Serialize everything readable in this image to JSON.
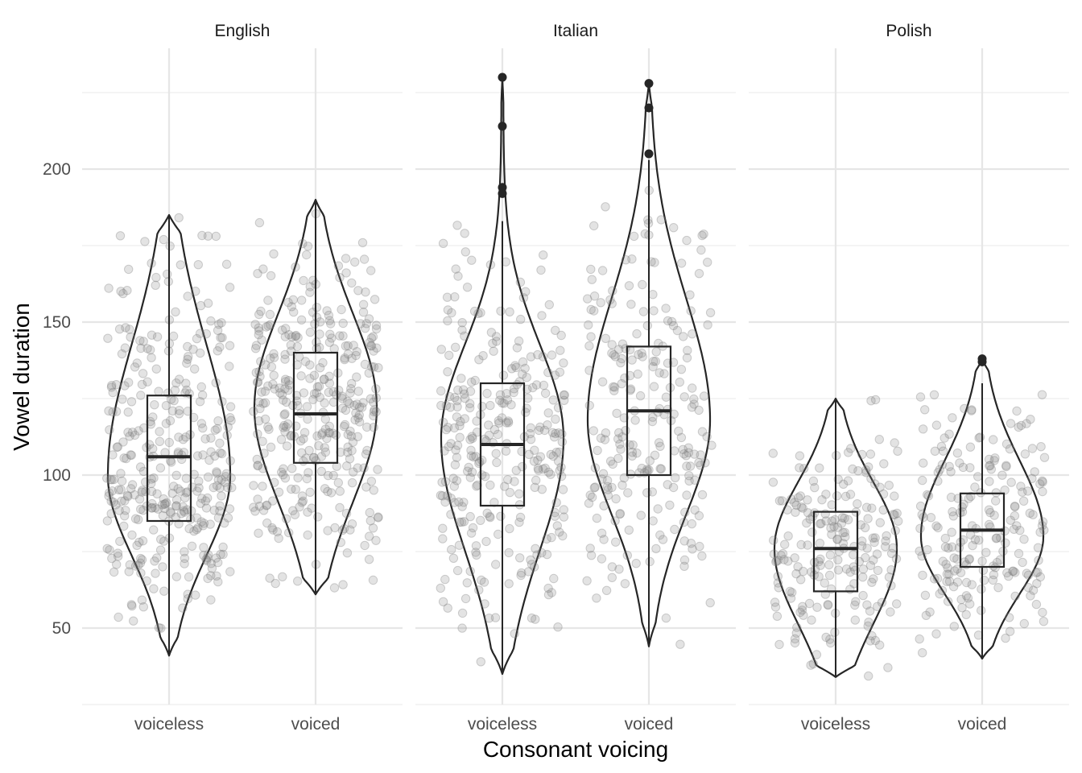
{
  "chart_data": {
    "type": "violin",
    "xlabel": "Consonant voicing",
    "ylabel": "Vowel duration",
    "ylim": [
      25,
      240
    ],
    "yticks": [
      50,
      100,
      150,
      200
    ],
    "categories": [
      "voiceless",
      "voiced"
    ],
    "grid": true,
    "colors": {
      "outline": "#262626",
      "points": "#7f7f7f"
    },
    "panels": [
      {
        "name": "English",
        "groups": [
          {
            "category": "voiceless",
            "min": 41,
            "q1": 85,
            "median": 106,
            "q3": 126,
            "max": 185,
            "mode": 100,
            "n": 360,
            "outliers": []
          },
          {
            "category": "voiced",
            "min": 61,
            "q1": 104,
            "median": 120,
            "q3": 140,
            "max": 190,
            "mode": 122,
            "n": 360,
            "outliers": []
          }
        ]
      },
      {
        "name": "Italian",
        "groups": [
          {
            "category": "voiceless",
            "min": 35,
            "q1": 90,
            "median": 110,
            "q3": 130,
            "max": 183,
            "mode": 112,
            "n": 300,
            "outliers": [
              192,
              194,
              214,
              230
            ]
          },
          {
            "category": "voiced",
            "min": 44,
            "q1": 100,
            "median": 121,
            "q3": 142,
            "max": 203,
            "mode": 118,
            "n": 240,
            "outliers": [
              205,
              220,
              228
            ]
          }
        ]
      },
      {
        "name": "Polish",
        "groups": [
          {
            "category": "voiceless",
            "min": 34,
            "q1": 62,
            "median": 76,
            "q3": 88,
            "max": 125,
            "mode": 76,
            "n": 210,
            "outliers": []
          },
          {
            "category": "voiced",
            "min": 40,
            "q1": 70,
            "median": 82,
            "q3": 94,
            "max": 130,
            "mode": 80,
            "n": 210,
            "outliers": [
              137,
              138
            ]
          }
        ]
      }
    ]
  }
}
